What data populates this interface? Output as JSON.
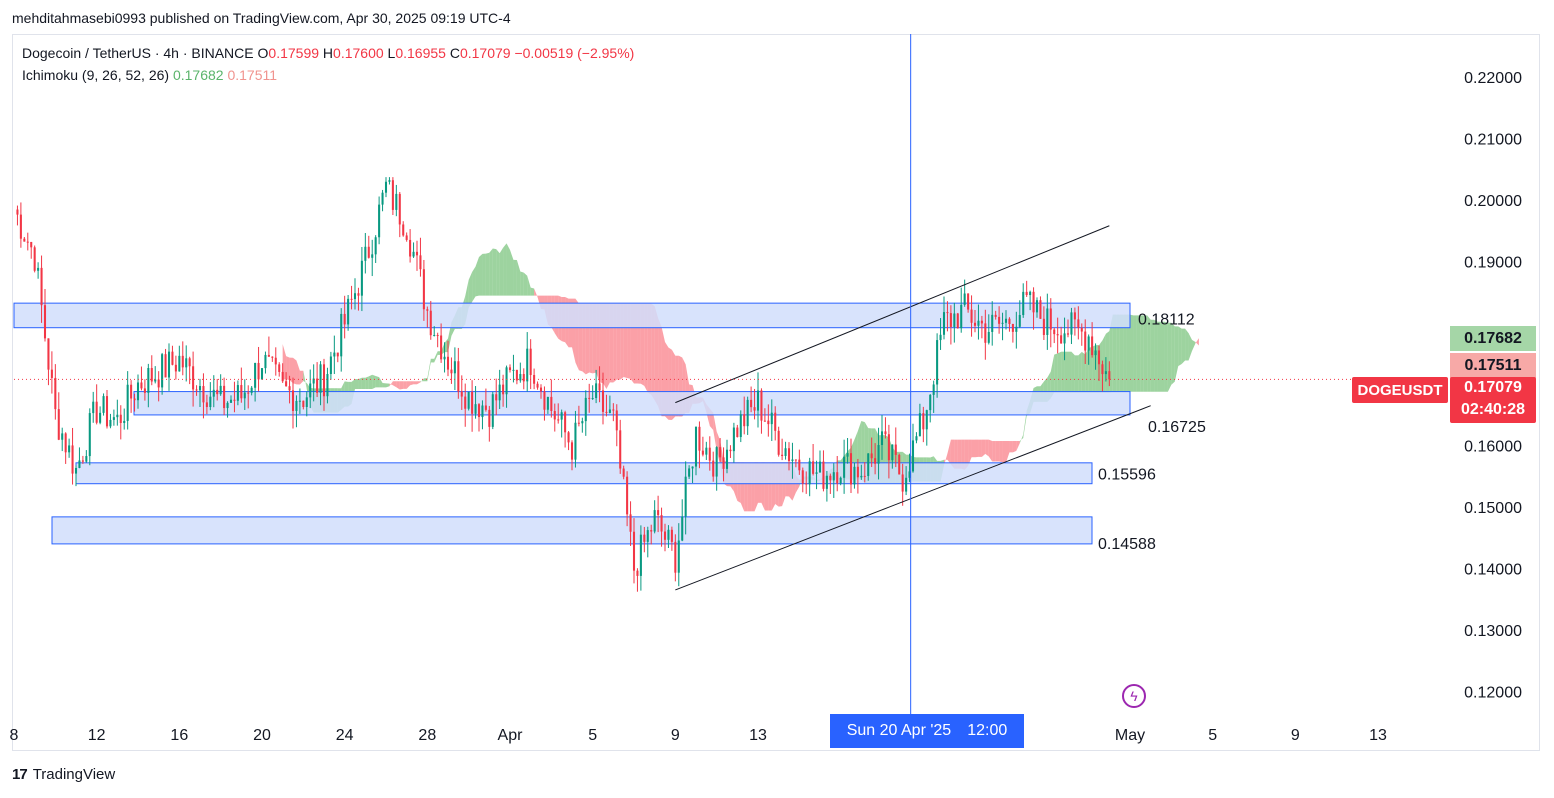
{
  "header": {
    "publisher": "mehditahmasebi0993 published on TradingView.com, Apr 30, 2025 09:19 UTC-4"
  },
  "legend": {
    "symbol": "Dogecoin / TetherUS · 4h · BINANCE",
    "o_label": "O",
    "o_value": "0.17599",
    "h_label": "H",
    "h_value": "0.17600",
    "l_label": "L",
    "l_value": "0.16955",
    "c_label": "C",
    "c_value": "0.17079",
    "change": "−0.00519 (−2.95%)",
    "indicator": "Ichimoku (9, 26, 52, 26)",
    "ind_value1": "0.17682",
    "ind_value2": "0.17511"
  },
  "price_tags": {
    "span_a": "0.17682",
    "span_b": "0.17511",
    "symbol": "DOGEUSDT",
    "current": "0.17079",
    "countdown": "02:40:28"
  },
  "crosshair": {
    "date": "Sun 20 Apr '25",
    "time": "12:00"
  },
  "footer": {
    "brand": "TradingView",
    "mark": "17"
  },
  "colors": {
    "up": "#089981",
    "down": "#f23645",
    "cloud_bull": "#4caf50",
    "cloud_bear": "#f7525f",
    "zone_fill": "#d1defc",
    "zone_border": "#2962ff",
    "crosshair": "#2962ff"
  },
  "icons": {
    "event": "lightning-bolt-icon",
    "logo": "tradingview-logo-icon"
  },
  "chart_data": {
    "type": "candlestick",
    "title": "Dogecoin / TetherUS · 4h · BINANCE",
    "ylim": [
      0.115,
      0.228
    ],
    "y_ticks": [
      "0.22000",
      "0.21000",
      "0.20000",
      "0.19000",
      "0.16000",
      "0.15000",
      "0.14000",
      "0.13000",
      "0.12000"
    ],
    "x_ticks": [
      "8",
      "12",
      "16",
      "20",
      "24",
      "28",
      "Apr",
      "5",
      "9",
      "13",
      "5",
      "May",
      "5",
      "9",
      "13"
    ],
    "x_dates": [
      "2025-03-08",
      "2025-03-12",
      "2025-03-16",
      "2025-03-20",
      "2025-03-24",
      "2025-03-28",
      "2025-04-01",
      "2025-04-05",
      "2025-04-09",
      "2025-04-13",
      "2025-04-25",
      "2025-05-01",
      "2025-05-05",
      "2025-05-09",
      "2025-05-13"
    ],
    "x_start": "2025-03-08",
    "x_end": "2025-05-16",
    "close_path": [
      [
        "2025-03-08",
        0.1985
      ],
      [
        "2025-03-09",
        0.191
      ],
      [
        "2025-03-10",
        0.165
      ],
      [
        "2025-03-11",
        0.156
      ],
      [
        "2025-03-12",
        0.166
      ],
      [
        "2025-03-13",
        0.164
      ],
      [
        "2025-03-14",
        0.17
      ],
      [
        "2025-03-15",
        0.172
      ],
      [
        "2025-03-16",
        0.174
      ],
      [
        "2025-03-17",
        0.17
      ],
      [
        "2025-03-18",
        0.167
      ],
      [
        "2025-03-19",
        0.168
      ],
      [
        "2025-03-20",
        0.174
      ],
      [
        "2025-03-21",
        0.169
      ],
      [
        "2025-03-22",
        0.168
      ],
      [
        "2025-03-23",
        0.171
      ],
      [
        "2025-03-24",
        0.18
      ],
      [
        "2025-03-25",
        0.19
      ],
      [
        "2025-03-26",
        0.202
      ],
      [
        "2025-03-27",
        0.196
      ],
      [
        "2025-03-28",
        0.182
      ],
      [
        "2025-03-29",
        0.174
      ],
      [
        "2025-03-30",
        0.168
      ],
      [
        "2025-03-31",
        0.166
      ],
      [
        "2025-04-01",
        0.171
      ],
      [
        "2025-04-02",
        0.174
      ],
      [
        "2025-04-03",
        0.166
      ],
      [
        "2025-04-04",
        0.16
      ],
      [
        "2025-04-05",
        0.168
      ],
      [
        "2025-04-06",
        0.164
      ],
      [
        "2025-04-07",
        0.14
      ],
      [
        "2025-04-08",
        0.148
      ],
      [
        "2025-04-09",
        0.142
      ],
      [
        "2025-04-10",
        0.162
      ],
      [
        "2025-04-11",
        0.157
      ],
      [
        "2025-04-12",
        0.163
      ],
      [
        "2025-04-13",
        0.167
      ],
      [
        "2025-04-14",
        0.161
      ],
      [
        "2025-04-15",
        0.157
      ],
      [
        "2025-04-16",
        0.155
      ],
      [
        "2025-04-17",
        0.157
      ],
      [
        "2025-04-18",
        0.156
      ],
      [
        "2025-04-19",
        0.16
      ],
      [
        "2025-04-20",
        0.155
      ],
      [
        "2025-04-21",
        0.164
      ],
      [
        "2025-04-22",
        0.18
      ],
      [
        "2025-04-23",
        0.182
      ],
      [
        "2025-04-24",
        0.179
      ],
      [
        "2025-04-25",
        0.18
      ],
      [
        "2025-04-26",
        0.183
      ],
      [
        "2025-04-27",
        0.18
      ],
      [
        "2025-04-28",
        0.179
      ],
      [
        "2025-04-29",
        0.178
      ],
      [
        "2025-04-30",
        0.17079
      ]
    ],
    "series": [
      {
        "name": "0.17682",
        "values": [
          0.17682
        ]
      },
      {
        "name": "0.17511",
        "values": [
          0.17511
        ]
      }
    ],
    "zones": [
      {
        "from": 0.1792,
        "to": 0.1832,
        "label": "0.18112"
      },
      {
        "from": 0.165,
        "to": 0.1688,
        "label": "0.16725"
      },
      {
        "from": 0.1538,
        "to": 0.1572,
        "label": "0.15596"
      },
      {
        "from": 0.144,
        "to": 0.1484,
        "label": "0.14588"
      }
    ],
    "channel": [
      {
        "from": [
          "2025-04-09",
          0.167
        ],
        "to": [
          "2025-04-30",
          0.1958
        ]
      },
      {
        "from": [
          "2025-04-09",
          0.1365
        ],
        "to": [
          "2025-05-02",
          0.1665
        ]
      }
    ],
    "grid": false,
    "legend_position": "top-left"
  }
}
